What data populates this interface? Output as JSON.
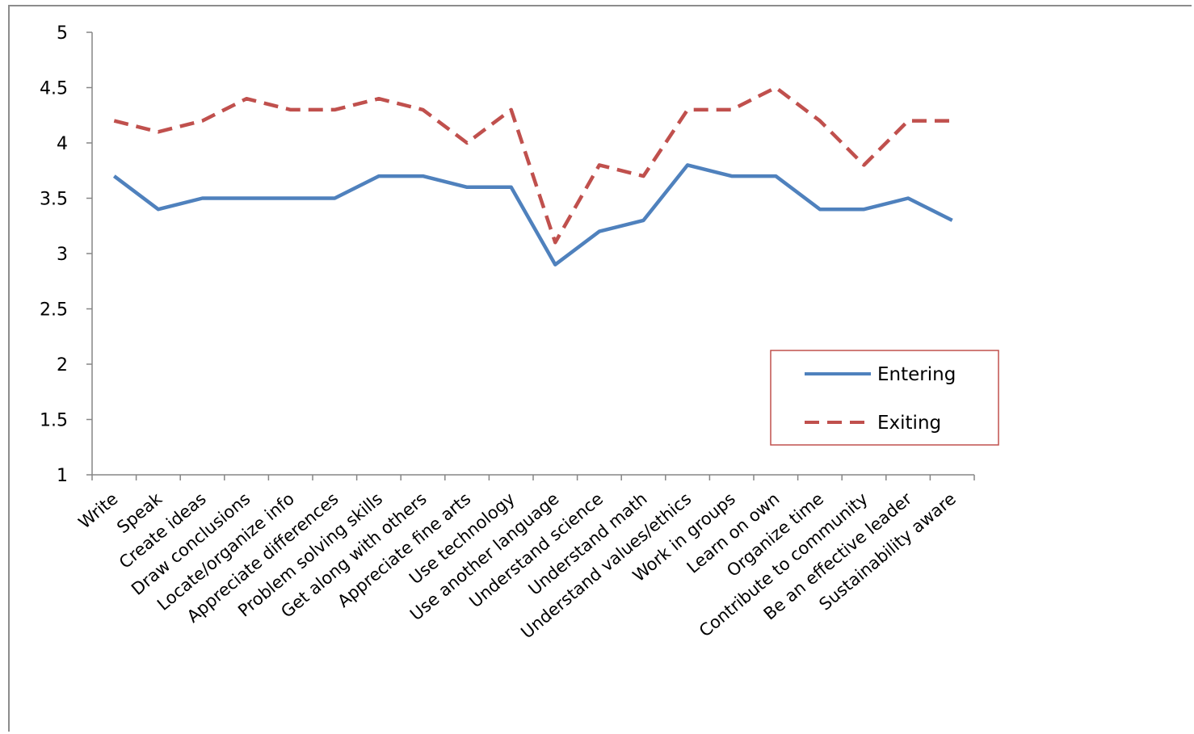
{
  "chart_data": {
    "type": "line",
    "title": "",
    "xlabel": "",
    "ylabel": "",
    "ylim": [
      1,
      5
    ],
    "yticks": [
      "1",
      "1.5",
      "2",
      "2.5",
      "3",
      "3.5",
      "4",
      "4.5",
      "5"
    ],
    "grid": false,
    "legend_position": "right",
    "categories": [
      "Write",
      "Speak",
      "Create ideas",
      "Draw conclusions",
      "Locate/organize info",
      "Appreciate differences",
      "Problem solving skills",
      "Get along with others",
      "Appreciate fine arts",
      "Use technology",
      "Use another language",
      "Understand science",
      "Understand math",
      "Understand values/ethics",
      "Work in groups",
      "Learn on own",
      "Organize time",
      "Contribute to community",
      "Be an effective leader",
      "Sustainability aware"
    ],
    "series": [
      {
        "name": "Entering",
        "color": "#4f81bd",
        "style": "solid",
        "values": [
          3.7,
          3.4,
          3.5,
          3.5,
          3.5,
          3.5,
          3.7,
          3.7,
          3.6,
          3.6,
          2.9,
          3.2,
          3.3,
          3.8,
          3.7,
          3.7,
          3.4,
          3.4,
          3.5,
          3.3
        ]
      },
      {
        "name": "Exiting",
        "color": "#c0504d",
        "style": "dashed",
        "values": [
          4.2,
          4.1,
          4.2,
          4.4,
          4.3,
          4.3,
          4.4,
          4.3,
          4.0,
          4.3,
          3.1,
          3.8,
          3.7,
          4.3,
          4.3,
          4.5,
          4.2,
          3.8,
          4.2,
          4.2
        ]
      }
    ]
  }
}
